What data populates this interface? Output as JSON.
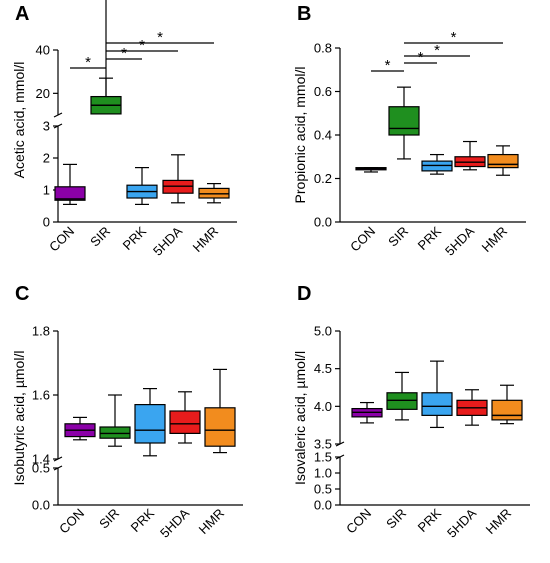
{
  "colors": {
    "CON": "#8b00a8",
    "SIR": "#1f8f1f",
    "PRK": "#3aa5f0",
    "5HDA": "#e81c1c",
    "HMR": "#f28c1e"
  },
  "chart_data": [
    {
      "panel": "A",
      "type": "box",
      "ylabel": "Acetic acid, mmol/l",
      "categories": [
        "CON",
        "SIR",
        "PRK",
        "5HDA",
        "HMR"
      ],
      "axis_break": true,
      "lower_segment": {
        "ylim": [
          0,
          3
        ],
        "ticks": [
          "0",
          "1",
          "2",
          "3"
        ]
      },
      "upper_segment": {
        "ylim": [
          10,
          40
        ],
        "ticks": [
          "20",
          "40"
        ]
      },
      "boxes": [
        {
          "min": 0.55,
          "q1": 0.68,
          "median": 0.72,
          "q3": 1.1,
          "max": 1.8
        },
        {
          "min": 8.5,
          "q1": 10.5,
          "median": 14.5,
          "q3": 18.5,
          "max": 27
        },
        {
          "min": 0.55,
          "q1": 0.75,
          "median": 0.95,
          "q3": 1.15,
          "max": 1.7
        },
        {
          "min": 0.6,
          "q1": 0.9,
          "median": 1.12,
          "q3": 1.3,
          "max": 2.1
        },
        {
          "min": 0.6,
          "q1": 0.75,
          "median": 0.88,
          "q3": 1.05,
          "max": 1.2
        }
      ],
      "significance": [
        {
          "from": 0,
          "to": 1,
          "label": "*"
        },
        {
          "from": 1,
          "to": 2,
          "label": "*"
        },
        {
          "from": 1,
          "to": 3,
          "label": "*"
        },
        {
          "from": 1,
          "to": 4,
          "label": "*"
        }
      ]
    },
    {
      "panel": "B",
      "type": "box",
      "ylabel": "Propionic acid, mmol/l",
      "categories": [
        "CON",
        "SIR",
        "PRK",
        "5HDA",
        "HMR"
      ],
      "axis_break": false,
      "lower_segment": {
        "ylim": [
          0,
          0.8
        ],
        "ticks": [
          "0.0",
          "0.2",
          "0.4",
          "0.6",
          "0.8"
        ]
      },
      "boxes": [
        {
          "min": 0.23,
          "q1": 0.24,
          "median": 0.245,
          "q3": 0.25,
          "max": 0.25
        },
        {
          "min": 0.29,
          "q1": 0.4,
          "median": 0.43,
          "q3": 0.53,
          "max": 0.62
        },
        {
          "min": 0.22,
          "q1": 0.235,
          "median": 0.26,
          "q3": 0.28,
          "max": 0.31
        },
        {
          "min": 0.24,
          "q1": 0.255,
          "median": 0.275,
          "q3": 0.3,
          "max": 0.37
        },
        {
          "min": 0.215,
          "q1": 0.25,
          "median": 0.265,
          "q3": 0.31,
          "max": 0.35
        }
      ],
      "significance": [
        {
          "from": 0,
          "to": 1,
          "label": "*"
        },
        {
          "from": 1,
          "to": 2,
          "label": "*"
        },
        {
          "from": 1,
          "to": 3,
          "label": "*"
        },
        {
          "from": 1,
          "to": 4,
          "label": "*"
        }
      ]
    },
    {
      "panel": "C",
      "type": "box",
      "ylabel": "Isobutyric acid, µmol/l",
      "categories": [
        "CON",
        "SIR",
        "PRK",
        "5HDA",
        "HMR"
      ],
      "axis_break": true,
      "lower_segment": {
        "ylim": [
          0,
          0.5
        ],
        "ticks": [
          "0.0",
          "0.5"
        ]
      },
      "upper_segment": {
        "ylim": [
          1.4,
          1.8
        ],
        "ticks": [
          "1.4",
          "1.6",
          "1.8"
        ]
      },
      "boxes": [
        {
          "min": 1.46,
          "q1": 1.47,
          "median": 1.49,
          "q3": 1.51,
          "max": 1.53
        },
        {
          "min": 1.44,
          "q1": 1.465,
          "median": 1.48,
          "q3": 1.5,
          "max": 1.6
        },
        {
          "min": 1.41,
          "q1": 1.45,
          "median": 1.49,
          "q3": 1.57,
          "max": 1.62
        },
        {
          "min": 1.45,
          "q1": 1.48,
          "median": 1.51,
          "q3": 1.55,
          "max": 1.61
        },
        {
          "min": 1.42,
          "q1": 1.44,
          "median": 1.49,
          "q3": 1.56,
          "max": 1.68
        }
      ],
      "significance": []
    },
    {
      "panel": "D",
      "type": "box",
      "ylabel": "Isovaleric acid, µmol/l",
      "categories": [
        "CON",
        "SIR",
        "PRK",
        "5HDA",
        "HMR"
      ],
      "axis_break": true,
      "lower_segment": {
        "ylim": [
          0,
          1.5
        ],
        "ticks": [
          "0.0",
          "0.5",
          "1.0",
          "1.5"
        ]
      },
      "upper_segment": {
        "ylim": [
          3.5,
          5.0
        ],
        "ticks": [
          "3.5",
          "4.0",
          "4.5",
          "5.0"
        ]
      },
      "boxes": [
        {
          "min": 3.78,
          "q1": 3.86,
          "median": 3.92,
          "q3": 3.97,
          "max": 4.05
        },
        {
          "min": 3.82,
          "q1": 3.96,
          "median": 4.08,
          "q3": 4.18,
          "max": 4.45
        },
        {
          "min": 3.72,
          "q1": 3.88,
          "median": 4.0,
          "q3": 4.18,
          "max": 4.6
        },
        {
          "min": 3.75,
          "q1": 3.88,
          "median": 3.98,
          "q3": 4.08,
          "max": 4.22
        },
        {
          "min": 3.77,
          "q1": 3.82,
          "median": 3.88,
          "q3": 4.08,
          "max": 4.28
        }
      ],
      "significance": []
    }
  ]
}
